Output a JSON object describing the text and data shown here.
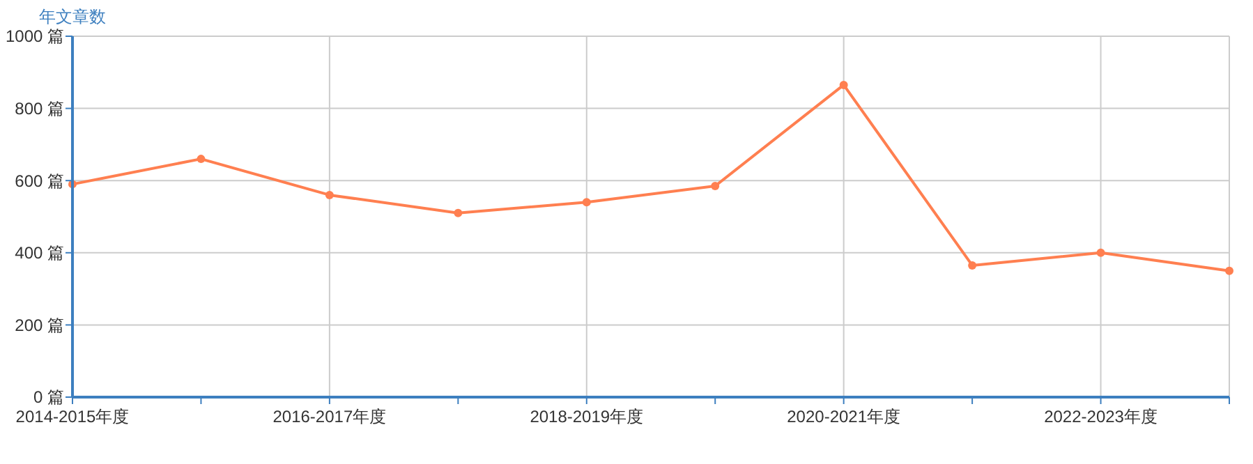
{
  "chart_data": {
    "type": "line",
    "ylabel": "年文章数",
    "categories": [
      "2014-2015年度",
      null,
      "2016-2017年度",
      null,
      "2018-2019年度",
      null,
      "2020-2021年度",
      null,
      "2022-2023年度",
      null
    ],
    "series": [
      {
        "color": "#ff7f50",
        "values": [
          590,
          660,
          560,
          510,
          540,
          585,
          865,
          365,
          400,
          350
        ]
      }
    ],
    "ylim": [
      0,
      1000
    ],
    "yticks": [
      {
        "value": 0,
        "label": "0 篇"
      },
      {
        "value": 200,
        "label": "200 篇"
      },
      {
        "value": 400,
        "label": "400 篇"
      },
      {
        "value": 600,
        "label": "600 篇"
      },
      {
        "value": 800,
        "label": "800 篇"
      },
      {
        "value": 1000,
        "label": "1000 篇"
      }
    ],
    "grid": true,
    "marker": "circle",
    "line_style": "solid"
  }
}
